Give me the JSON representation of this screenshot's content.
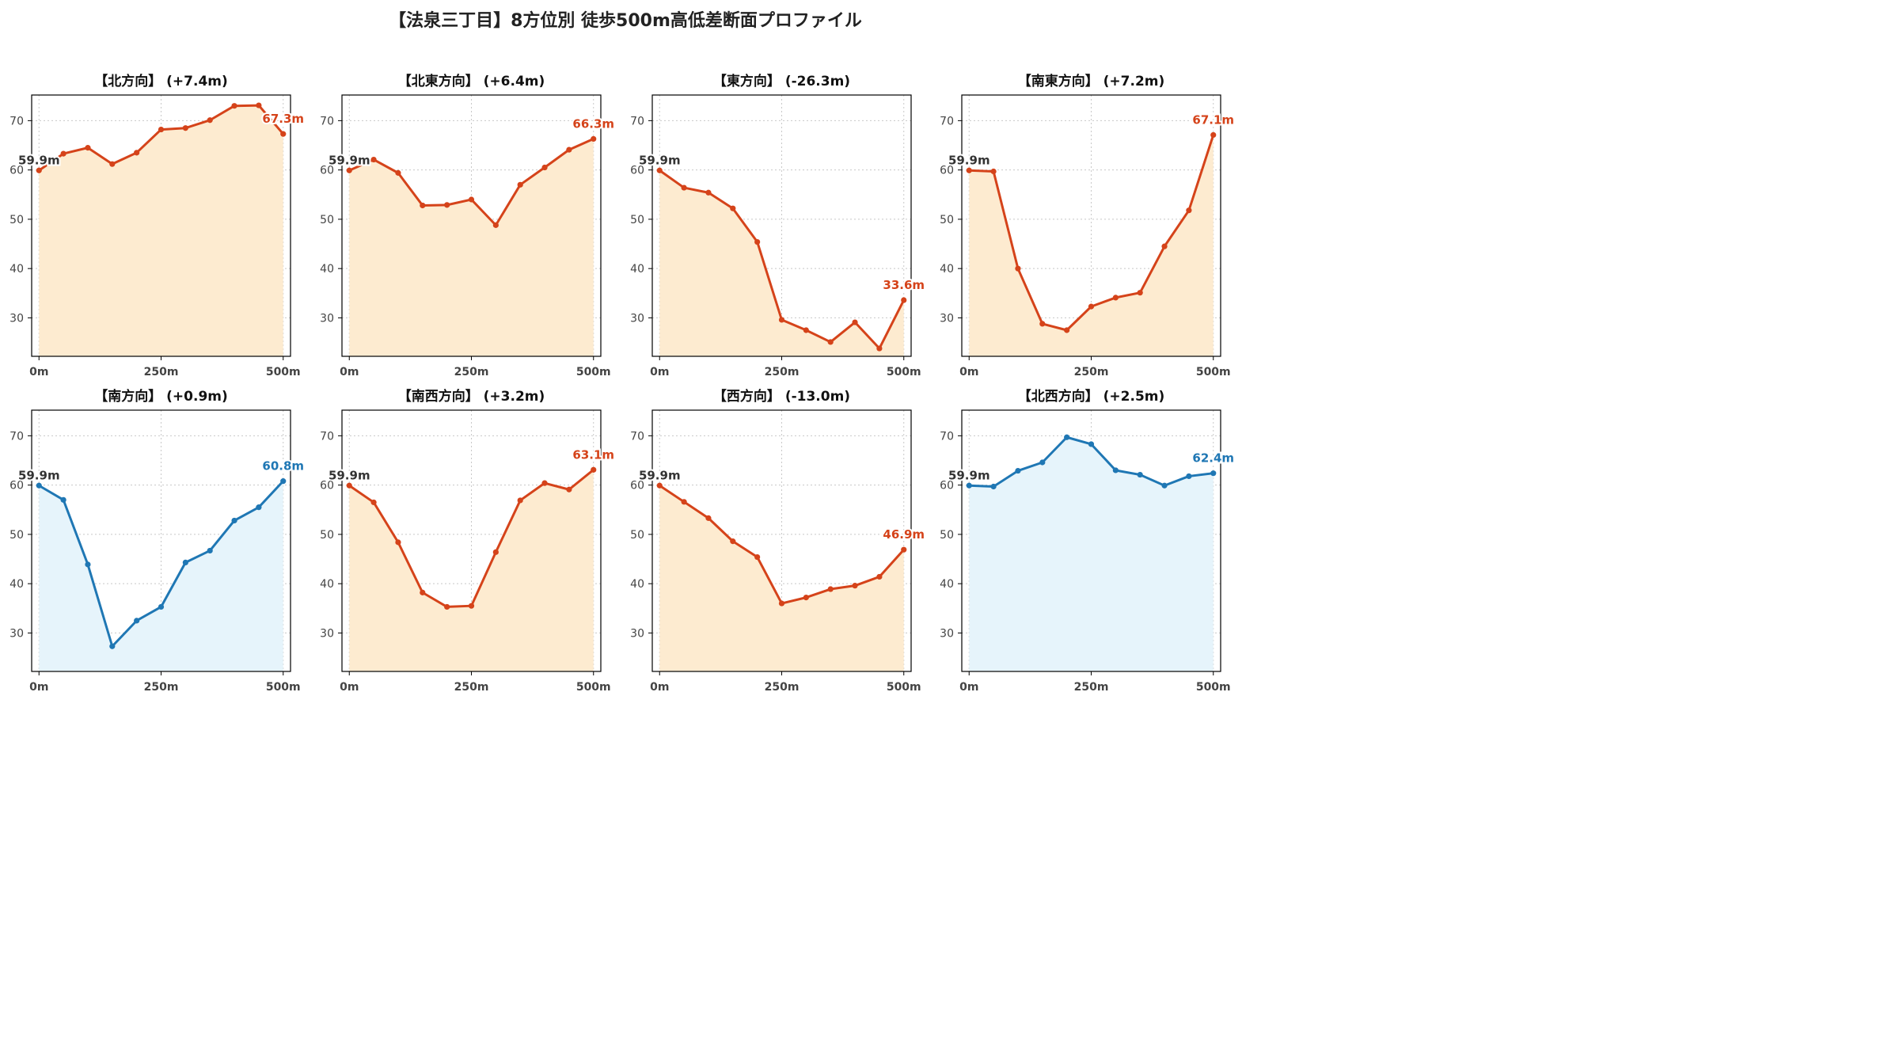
{
  "figure_title": "【法泉三丁目】8方位別 徒歩500m高低差断面プロファイル",
  "colors": {
    "up_line": "#d5431a",
    "up_fill": "#fdebd0",
    "down_line": "#1f77b4",
    "down_fill": "#e6f4fb",
    "start_label": "#333333",
    "grid": "#bbbbbb"
  },
  "chart_data": [
    {
      "type": "area",
      "title": "【北方向】 (+7.4m)",
      "x": [
        0,
        50,
        100,
        150,
        200,
        250,
        300,
        350,
        400,
        450,
        500
      ],
      "values": [
        59.9,
        63.3,
        64.5,
        61.2,
        63.5,
        68.2,
        68.5,
        70.1,
        73.0,
        73.1,
        67.3
      ],
      "start_label": "59.9m",
      "end_label": "67.3m",
      "scheme": "up",
      "xticks": [
        0,
        250,
        500
      ],
      "xtick_labels": [
        "0m",
        "250m",
        "500m"
      ],
      "yticks": [
        30,
        40,
        50,
        60,
        70
      ],
      "ylim": [
        22.2,
        75.2
      ],
      "xlim": [
        -15,
        515
      ],
      "grid": true
    },
    {
      "type": "area",
      "title": "【北東方向】 (+6.4m)",
      "x": [
        0,
        50,
        100,
        150,
        200,
        250,
        300,
        350,
        400,
        450,
        500
      ],
      "values": [
        59.9,
        62.1,
        59.4,
        52.8,
        52.9,
        54.0,
        48.8,
        57.0,
        60.5,
        64.1,
        66.3
      ],
      "start_label": "59.9m",
      "end_label": "66.3m",
      "scheme": "up",
      "xticks": [
        0,
        250,
        500
      ],
      "xtick_labels": [
        "0m",
        "250m",
        "500m"
      ],
      "yticks": [
        30,
        40,
        50,
        60,
        70
      ],
      "ylim": [
        22.2,
        75.2
      ],
      "xlim": [
        -15,
        515
      ],
      "grid": true
    },
    {
      "type": "area",
      "title": "【東方向】 (-26.3m)",
      "x": [
        0,
        50,
        100,
        150,
        200,
        250,
        300,
        350,
        400,
        450,
        500
      ],
      "values": [
        59.9,
        56.4,
        55.4,
        52.2,
        45.4,
        29.6,
        27.5,
        25.1,
        29.1,
        23.8,
        33.6
      ],
      "start_label": "59.9m",
      "end_label": "33.6m",
      "scheme": "up",
      "xticks": [
        0,
        250,
        500
      ],
      "xtick_labels": [
        "0m",
        "250m",
        "500m"
      ],
      "yticks": [
        30,
        40,
        50,
        60,
        70
      ],
      "ylim": [
        22.2,
        75.2
      ],
      "xlim": [
        -15,
        515
      ],
      "grid": true
    },
    {
      "type": "area",
      "title": "【南東方向】 (+7.2m)",
      "x": [
        0,
        50,
        100,
        150,
        200,
        250,
        300,
        350,
        400,
        450,
        500
      ],
      "values": [
        59.9,
        59.7,
        40.0,
        28.8,
        27.5,
        32.3,
        34.1,
        35.1,
        44.5,
        51.8,
        67.1
      ],
      "start_label": "59.9m",
      "end_label": "67.1m",
      "scheme": "up",
      "xticks": [
        0,
        250,
        500
      ],
      "xtick_labels": [
        "0m",
        "250m",
        "500m"
      ],
      "yticks": [
        30,
        40,
        50,
        60,
        70
      ],
      "ylim": [
        22.2,
        75.2
      ],
      "xlim": [
        -15,
        515
      ],
      "grid": true
    },
    {
      "type": "area",
      "title": "【南方向】 (+0.9m)",
      "x": [
        0,
        50,
        100,
        150,
        200,
        250,
        300,
        350,
        400,
        450,
        500
      ],
      "values": [
        59.9,
        57.0,
        43.9,
        27.3,
        32.5,
        35.3,
        44.3,
        46.7,
        52.8,
        55.5,
        60.8
      ],
      "start_label": "59.9m",
      "end_label": "60.8m",
      "scheme": "down",
      "xticks": [
        0,
        250,
        500
      ],
      "xtick_labels": [
        "0m",
        "250m",
        "500m"
      ],
      "yticks": [
        30,
        40,
        50,
        60,
        70
      ],
      "ylim": [
        22.2,
        75.2
      ],
      "xlim": [
        -15,
        515
      ],
      "grid": true
    },
    {
      "type": "area",
      "title": "【南西方向】 (+3.2m)",
      "x": [
        0,
        50,
        100,
        150,
        200,
        250,
        300,
        350,
        400,
        450,
        500
      ],
      "values": [
        59.9,
        56.5,
        48.4,
        38.2,
        35.3,
        35.5,
        46.4,
        56.9,
        60.4,
        59.1,
        63.1
      ],
      "start_label": "59.9m",
      "end_label": "63.1m",
      "scheme": "up",
      "xticks": [
        0,
        250,
        500
      ],
      "xtick_labels": [
        "0m",
        "250m",
        "500m"
      ],
      "yticks": [
        30,
        40,
        50,
        60,
        70
      ],
      "ylim": [
        22.2,
        75.2
      ],
      "xlim": [
        -15,
        515
      ],
      "grid": true
    },
    {
      "type": "area",
      "title": "【西方向】 (-13.0m)",
      "x": [
        0,
        50,
        100,
        150,
        200,
        250,
        300,
        350,
        400,
        450,
        500
      ],
      "values": [
        59.9,
        56.6,
        53.3,
        48.6,
        45.4,
        36.0,
        37.2,
        38.9,
        39.6,
        41.4,
        46.9
      ],
      "start_label": "59.9m",
      "end_label": "46.9m",
      "scheme": "up",
      "xticks": [
        0,
        250,
        500
      ],
      "xtick_labels": [
        "0m",
        "250m",
        "500m"
      ],
      "yticks": [
        30,
        40,
        50,
        60,
        70
      ],
      "ylim": [
        22.2,
        75.2
      ],
      "xlim": [
        -15,
        515
      ],
      "grid": true
    },
    {
      "type": "area",
      "title": "【北西方向】 (+2.5m)",
      "x": [
        0,
        50,
        100,
        150,
        200,
        250,
        300,
        350,
        400,
        450,
        500
      ],
      "values": [
        59.9,
        59.7,
        62.9,
        64.6,
        69.7,
        68.3,
        63.0,
        62.1,
        59.9,
        61.8,
        62.4
      ],
      "start_label": "59.9m",
      "end_label": "62.4m",
      "scheme": "down",
      "xticks": [
        0,
        250,
        500
      ],
      "xtick_labels": [
        "0m",
        "250m",
        "500m"
      ],
      "yticks": [
        30,
        40,
        50,
        60,
        70
      ],
      "ylim": [
        22.2,
        75.2
      ],
      "xlim": [
        -15,
        515
      ],
      "grid": true
    }
  ]
}
